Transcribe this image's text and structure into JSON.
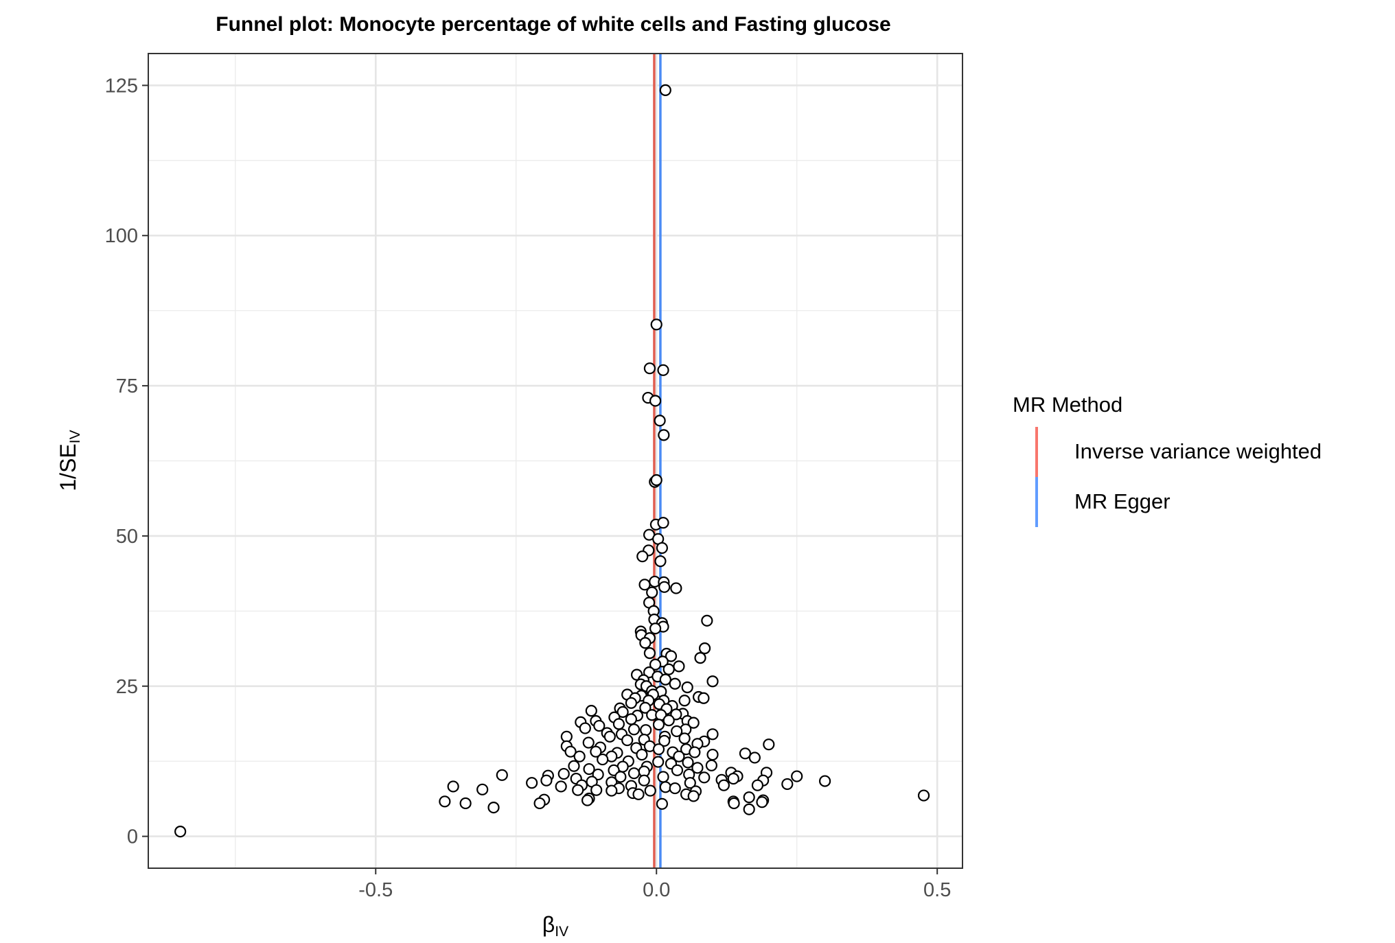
{
  "chart_data": {
    "type": "scatter",
    "title": "Funnel plot: Monocyte percentage of white cells and Fasting glucose",
    "xlabel": "β",
    "xlabel_sub": "IV",
    "ylabel": "1/SE",
    "ylabel_sub": "IV",
    "xlim": [
      -0.905,
      0.545
    ],
    "ylim": [
      -5.3,
      130.3
    ],
    "x_ticks": [
      -0.5,
      0.0,
      0.5
    ],
    "x_tick_labels": [
      "-0.5",
      "0.0",
      "0.5"
    ],
    "y_ticks": [
      0,
      25,
      50,
      75,
      100,
      125
    ],
    "y_tick_labels": [
      "0",
      "25",
      "50",
      "75",
      "100",
      "125"
    ],
    "grid": true,
    "legend_placement": "right",
    "legend": {
      "title": "MR Method",
      "items": [
        {
          "name": "Inverse variance weighted",
          "color": "#F8766D"
        },
        {
          "name": "MR Egger",
          "color": "#619CFF"
        }
      ]
    },
    "lines": [
      {
        "name": "Inverse variance weighted",
        "x": -0.004,
        "color": "#E05E50"
      },
      {
        "name": "MR Egger",
        "x": 0.007,
        "color": "#4A8BF5"
      }
    ],
    "points": [
      {
        "x": -0.848,
        "y": 0.8
      },
      {
        "x": 0.476,
        "y": 6.8
      },
      {
        "x": 0.016,
        "y": 124.2
      },
      {
        "x": 0.0,
        "y": 85.2
      },
      {
        "x": -0.012,
        "y": 77.9
      },
      {
        "x": 0.012,
        "y": 77.6
      },
      {
        "x": -0.015,
        "y": 73.0
      },
      {
        "x": -0.002,
        "y": 72.5
      },
      {
        "x": 0.006,
        "y": 69.2
      },
      {
        "x": 0.013,
        "y": 66.8
      },
      {
        "x": -0.003,
        "y": 59.0
      },
      {
        "x": 0.0,
        "y": 59.3
      },
      {
        "x": -0.001,
        "y": 51.9
      },
      {
        "x": 0.012,
        "y": 52.2
      },
      {
        "x": -0.013,
        "y": 50.2
      },
      {
        "x": 0.003,
        "y": 49.5
      },
      {
        "x": -0.014,
        "y": 47.6
      },
      {
        "x": 0.01,
        "y": 48.0
      },
      {
        "x": -0.025,
        "y": 46.6
      },
      {
        "x": 0.007,
        "y": 45.8
      },
      {
        "x": -0.021,
        "y": 41.9
      },
      {
        "x": -0.003,
        "y": 42.4
      },
      {
        "x": 0.013,
        "y": 42.3
      },
      {
        "x": 0.014,
        "y": 41.5
      },
      {
        "x": 0.035,
        "y": 41.3
      },
      {
        "x": -0.008,
        "y": 40.6
      },
      {
        "x": -0.013,
        "y": 38.9
      },
      {
        "x": -0.005,
        "y": 37.5
      },
      {
        "x": -0.004,
        "y": 36.1
      },
      {
        "x": 0.01,
        "y": 35.5
      },
      {
        "x": 0.09,
        "y": 35.9
      },
      {
        "x": 0.012,
        "y": 34.9
      },
      {
        "x": -0.028,
        "y": 34.1
      },
      {
        "x": -0.002,
        "y": 34.6
      },
      {
        "x": -0.027,
        "y": 33.5
      },
      {
        "x": -0.012,
        "y": 33.0
      },
      {
        "x": -0.02,
        "y": 32.2
      },
      {
        "x": 0.086,
        "y": 31.3
      },
      {
        "x": -0.012,
        "y": 30.5
      },
      {
        "x": 0.018,
        "y": 30.4
      },
      {
        "x": 0.026,
        "y": 30.0
      },
      {
        "x": 0.078,
        "y": 29.7
      },
      {
        "x": 0.011,
        "y": 29.1
      },
      {
        "x": -0.002,
        "y": 28.6
      },
      {
        "x": 0.04,
        "y": 28.3
      },
      {
        "x": 0.022,
        "y": 27.8
      },
      {
        "x": -0.013,
        "y": 27.3
      },
      {
        "x": -0.035,
        "y": 26.9
      },
      {
        "x": 0.002,
        "y": 26.6
      },
      {
        "x": -0.023,
        "y": 26.0
      },
      {
        "x": 0.016,
        "y": 26.1
      },
      {
        "x": 0.1,
        "y": 25.8
      },
      {
        "x": -0.028,
        "y": 25.3
      },
      {
        "x": -0.018,
        "y": 25.0
      },
      {
        "x": 0.033,
        "y": 25.4
      },
      {
        "x": 0.055,
        "y": 24.8
      },
      {
        "x": -0.008,
        "y": 24.2
      },
      {
        "x": 0.008,
        "y": 24.1
      },
      {
        "x": -0.052,
        "y": 23.6
      },
      {
        "x": -0.006,
        "y": 23.6
      },
      {
        "x": -0.027,
        "y": 23.4
      },
      {
        "x": -0.038,
        "y": 23.0
      },
      {
        "x": 0.075,
        "y": 23.2
      },
      {
        "x": 0.084,
        "y": 23.0
      },
      {
        "x": -0.014,
        "y": 22.6
      },
      {
        "x": 0.013,
        "y": 22.6
      },
      {
        "x": 0.05,
        "y": 22.6
      },
      {
        "x": -0.045,
        "y": 22.2
      },
      {
        "x": 0.005,
        "y": 22.0
      },
      {
        "x": 0.028,
        "y": 21.7
      },
      {
        "x": -0.065,
        "y": 21.3
      },
      {
        "x": -0.02,
        "y": 21.4
      },
      {
        "x": 0.018,
        "y": 21.2
      },
      {
        "x": -0.116,
        "y": 20.9
      },
      {
        "x": -0.06,
        "y": 20.7
      },
      {
        "x": 0.047,
        "y": 20.4
      },
      {
        "x": -0.034,
        "y": 20.1
      },
      {
        "x": -0.008,
        "y": 20.2
      },
      {
        "x": 0.008,
        "y": 20.2
      },
      {
        "x": 0.035,
        "y": 20.3
      },
      {
        "x": -0.075,
        "y": 19.8
      },
      {
        "x": -0.045,
        "y": 19.5
      },
      {
        "x": 0.022,
        "y": 19.3
      },
      {
        "x": 0.055,
        "y": 19.2
      },
      {
        "x": -0.135,
        "y": 19.0
      },
      {
        "x": -0.108,
        "y": 19.2
      },
      {
        "x": 0.066,
        "y": 18.9
      },
      {
        "x": 0.004,
        "y": 18.6
      },
      {
        "x": -0.067,
        "y": 18.7
      },
      {
        "x": -0.102,
        "y": 18.4
      },
      {
        "x": -0.127,
        "y": 18.0
      },
      {
        "x": -0.04,
        "y": 17.8
      },
      {
        "x": -0.019,
        "y": 17.7
      },
      {
        "x": 0.052,
        "y": 17.8
      },
      {
        "x": 0.036,
        "y": 17.5
      },
      {
        "x": -0.088,
        "y": 17.2
      },
      {
        "x": -0.062,
        "y": 17.0
      },
      {
        "x": 0.1,
        "y": 17.0
      },
      {
        "x": 0.015,
        "y": 16.6
      },
      {
        "x": -0.16,
        "y": 16.6
      },
      {
        "x": -0.083,
        "y": 16.6
      },
      {
        "x": -0.052,
        "y": 16.0
      },
      {
        "x": 0.05,
        "y": 16.3
      },
      {
        "x": -0.022,
        "y": 16.1
      },
      {
        "x": 0.014,
        "y": 15.9
      },
      {
        "x": 0.085,
        "y": 15.8
      },
      {
        "x": -0.121,
        "y": 15.6
      },
      {
        "x": 0.073,
        "y": 15.4
      },
      {
        "x": 0.2,
        "y": 15.3
      },
      {
        "x": -0.012,
        "y": 15.0
      },
      {
        "x": -0.16,
        "y": 15.0
      },
      {
        "x": -0.1,
        "y": 14.8
      },
      {
        "x": -0.036,
        "y": 14.7
      },
      {
        "x": 0.053,
        "y": 14.5
      },
      {
        "x": 0.004,
        "y": 14.5
      },
      {
        "x": -0.153,
        "y": 14.1
      },
      {
        "x": -0.108,
        "y": 14.1
      },
      {
        "x": 0.068,
        "y": 14.0
      },
      {
        "x": 0.029,
        "y": 14.0
      },
      {
        "x": -0.07,
        "y": 13.9
      },
      {
        "x": 0.158,
        "y": 13.8
      },
      {
        "x": -0.026,
        "y": 13.6
      },
      {
        "x": 0.1,
        "y": 13.6
      },
      {
        "x": -0.137,
        "y": 13.3
      },
      {
        "x": -0.08,
        "y": 13.3
      },
      {
        "x": 0.04,
        "y": 13.3
      },
      {
        "x": 0.175,
        "y": 13.1
      },
      {
        "x": -0.096,
        "y": 12.8
      },
      {
        "x": -0.05,
        "y": 12.5
      },
      {
        "x": 0.003,
        "y": 12.4
      },
      {
        "x": 0.056,
        "y": 12.3
      },
      {
        "x": 0.026,
        "y": 12.1
      },
      {
        "x": -0.147,
        "y": 11.7
      },
      {
        "x": 0.098,
        "y": 11.8
      },
      {
        "x": -0.06,
        "y": 11.6
      },
      {
        "x": -0.017,
        "y": 11.6
      },
      {
        "x": 0.073,
        "y": 11.4
      },
      {
        "x": -0.12,
        "y": 11.2
      },
      {
        "x": -0.076,
        "y": 11.0
      },
      {
        "x": 0.037,
        "y": 11.0
      },
      {
        "x": -0.022,
        "y": 10.8
      },
      {
        "x": 0.133,
        "y": 10.6
      },
      {
        "x": 0.196,
        "y": 10.6
      },
      {
        "x": -0.165,
        "y": 10.4
      },
      {
        "x": -0.104,
        "y": 10.3
      },
      {
        "x": -0.04,
        "y": 10.5
      },
      {
        "x": 0.058,
        "y": 10.3
      },
      {
        "x": -0.275,
        "y": 10.2
      },
      {
        "x": -0.193,
        "y": 10.1
      },
      {
        "x": 0.144,
        "y": 10.0
      },
      {
        "x": 0.25,
        "y": 10.0
      },
      {
        "x": -0.064,
        "y": 9.9
      },
      {
        "x": 0.012,
        "y": 9.9
      },
      {
        "x": 0.085,
        "y": 9.8
      },
      {
        "x": -0.143,
        "y": 9.6
      },
      {
        "x": 0.137,
        "y": 9.6
      },
      {
        "x": 0.116,
        "y": 9.4
      },
      {
        "x": -0.196,
        "y": 9.3
      },
      {
        "x": -0.022,
        "y": 9.3
      },
      {
        "x": 0.3,
        "y": 9.2
      },
      {
        "x": 0.19,
        "y": 9.3
      },
      {
        "x": -0.115,
        "y": 9.1
      },
      {
        "x": -0.08,
        "y": 9.0
      },
      {
        "x": -0.222,
        "y": 8.9
      },
      {
        "x": 0.06,
        "y": 8.9
      },
      {
        "x": 0.233,
        "y": 8.7
      },
      {
        "x": 0.12,
        "y": 8.5
      },
      {
        "x": -0.133,
        "y": 8.5
      },
      {
        "x": 0.18,
        "y": 8.5
      },
      {
        "x": -0.362,
        "y": 8.3
      },
      {
        "x": -0.17,
        "y": 8.3
      },
      {
        "x": -0.045,
        "y": 8.4
      },
      {
        "x": 0.016,
        "y": 8.2
      },
      {
        "x": -0.067,
        "y": 8.0
      },
      {
        "x": 0.033,
        "y": 8.0
      },
      {
        "x": -0.31,
        "y": 7.8
      },
      {
        "x": -0.14,
        "y": 7.7
      },
      {
        "x": -0.107,
        "y": 7.7
      },
      {
        "x": -0.08,
        "y": 7.6
      },
      {
        "x": -0.011,
        "y": 7.6
      },
      {
        "x": 0.07,
        "y": 7.5
      },
      {
        "x": -0.042,
        "y": 7.2
      },
      {
        "x": 0.053,
        "y": 7.0
      },
      {
        "x": -0.032,
        "y": 7.0
      },
      {
        "x": 0.066,
        "y": 6.7
      },
      {
        "x": 0.165,
        "y": 6.5
      },
      {
        "x": -0.12,
        "y": 6.3
      },
      {
        "x": -0.2,
        "y": 6.1
      },
      {
        "x": -0.123,
        "y": 6.0
      },
      {
        "x": 0.19,
        "y": 6.0
      },
      {
        "x": -0.377,
        "y": 5.8
      },
      {
        "x": 0.137,
        "y": 5.8
      },
      {
        "x": 0.188,
        "y": 5.7
      },
      {
        "x": -0.34,
        "y": 5.5
      },
      {
        "x": -0.208,
        "y": 5.5
      },
      {
        "x": 0.138,
        "y": 5.5
      },
      {
        "x": 0.01,
        "y": 5.4
      },
      {
        "x": -0.29,
        "y": 4.8
      },
      {
        "x": 0.165,
        "y": 4.5
      }
    ]
  }
}
